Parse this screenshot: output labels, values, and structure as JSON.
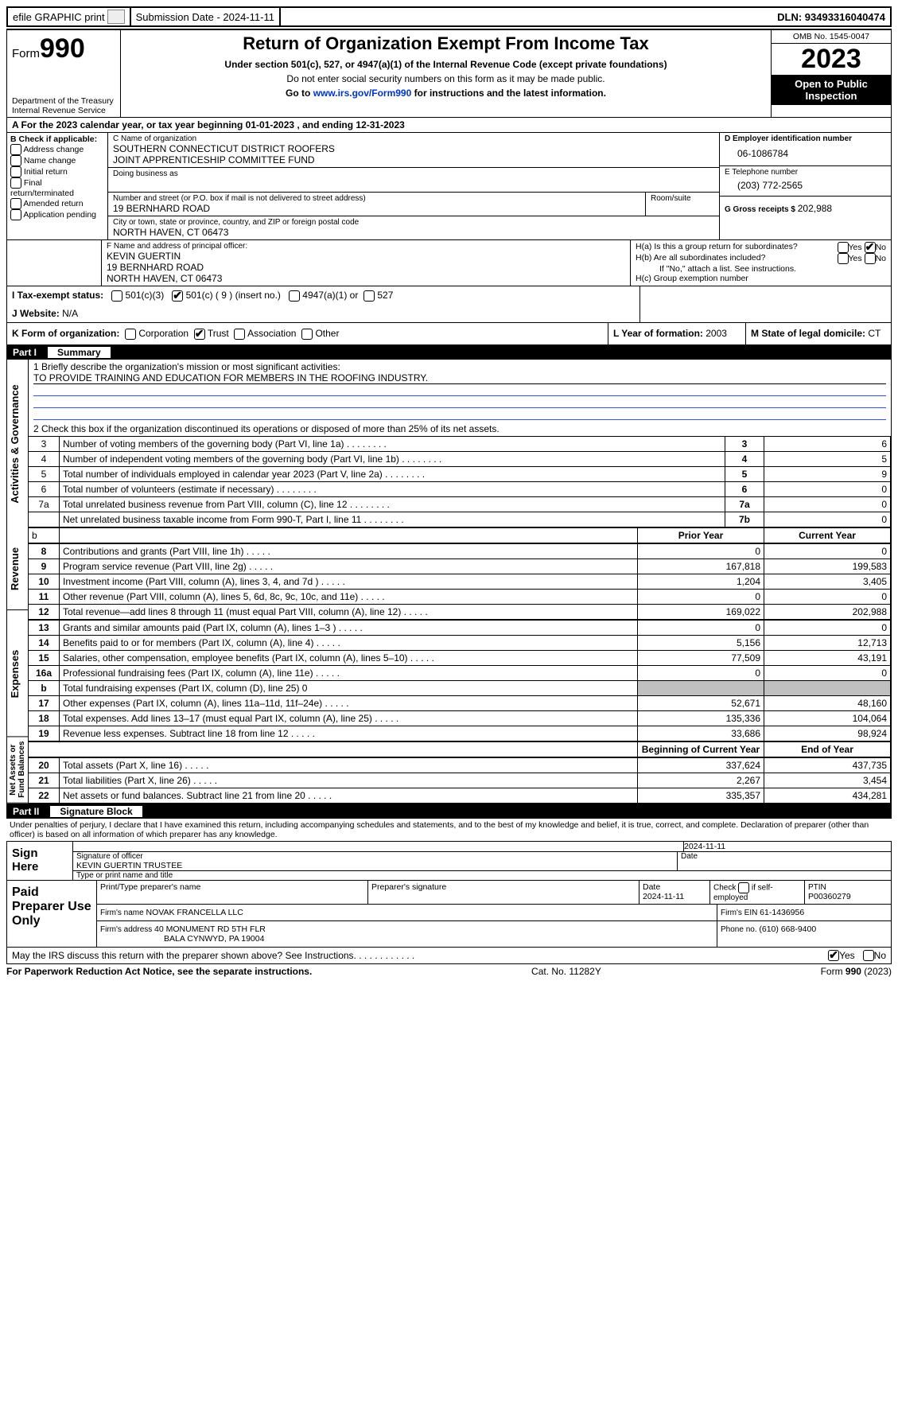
{
  "topbar": {
    "efile_label": "efile GRAPHIC print",
    "submission_label": "Submission Date - 2024-11-11",
    "dln_label": "DLN: 93493316040474"
  },
  "header": {
    "form_word": "Form",
    "form_num": "990",
    "dept": "Department of the Treasury\nInternal Revenue Service",
    "title": "Return of Organization Exempt From Income Tax",
    "sub1": "Under section 501(c), 527, or 4947(a)(1) of the Internal Revenue Code (except private foundations)",
    "sub2": "Do not enter social security numbers on this form as it may be made public.",
    "sub3_pre": "Go to ",
    "sub3_link": "www.irs.gov/Form990",
    "sub3_post": " for instructions and the latest information.",
    "omb": "OMB No. 1545-0047",
    "year": "2023",
    "open": "Open to Public Inspection"
  },
  "lineA": {
    "text_a": "A For the 2023 calendar year, or tax year beginning ",
    "begin": "01-01-2023",
    "mid": "    , and ending ",
    "end": "12-31-2023"
  },
  "boxB": {
    "head": "B Check if applicable:",
    "items": [
      "Address change",
      "Name change",
      "Initial return",
      "Final return/terminated",
      "Amended return",
      "Application pending"
    ]
  },
  "boxC": {
    "hdr_name": "C Name of organization",
    "name1": "SOUTHERN CONNECTICUT DISTRICT ROOFERS",
    "name2": "JOINT APPRENTICESHIP COMMITTEE FUND",
    "dba_hdr": "Doing business as",
    "street_hdr": "Number and street (or P.O. box if mail is not delivered to street address)",
    "room_hdr": "Room/suite",
    "street": "19 BERNHARD ROAD",
    "city_hdr": "City or town, state or province, country, and ZIP or foreign postal code",
    "city": "NORTH HAVEN, CT  06473"
  },
  "boxD": {
    "hdr": "D Employer identification number",
    "val": "06-1086784"
  },
  "boxE": {
    "hdr": "E Telephone number",
    "val": "(203) 772-2565"
  },
  "boxG": {
    "hdr": "G Gross receipts $ ",
    "val": "202,988"
  },
  "boxF": {
    "hdr": "F  Name and address of principal officer:",
    "l1": "KEVIN GUERTIN",
    "l2": "19 BERNHARD ROAD",
    "l3": "NORTH HAVEN, CT  06473"
  },
  "boxH": {
    "ha": "H(a)  Is this a group return for subordinates?",
    "hb": "H(b)  Are all subordinates included?",
    "hb2": "If \"No,\" attach a list. See instructions.",
    "hc": "H(c)  Group exemption number ",
    "yes": "Yes",
    "no": "No"
  },
  "boxI": {
    "hdr": "I    Tax-exempt status:",
    "o1": "501(c)(3)",
    "o2": "501(c) ( 9 ) (insert no.)",
    "o3": "4947(a)(1) or",
    "o4": "527"
  },
  "boxJ": {
    "hdr": "J    Website: ",
    "val": "N/A"
  },
  "boxK": {
    "hdr": "K Form of organization:",
    "o1": "Corporation",
    "o2": "Trust",
    "o3": "Association",
    "o4": "Other"
  },
  "boxL": {
    "hdr": "L Year of formation: ",
    "val": "2003"
  },
  "boxM": {
    "hdr": "M State of legal domicile: ",
    "val": "CT"
  },
  "part1": {
    "bar_part": "Part I",
    "bar_title": "Summary",
    "vlabels": {
      "gov": "Activities & Governance",
      "rev": "Revenue",
      "exp": "Expenses",
      "net": "Net Assets or Fund Balances"
    },
    "l1_hdr": "1   Briefly describe the organization's mission or most significant activities:",
    "l1_val": "TO PROVIDE TRAINING AND EDUCATION FOR MEMBERS IN THE ROOFING INDUSTRY.",
    "l2": "2   Check this box        if the organization discontinued its operations or disposed of more than 25% of its net assets.",
    "rows_gov": [
      {
        "n": "3",
        "label": "Number of voting members of the governing body (Part VI, line 1a)",
        "box": "3",
        "val": "6"
      },
      {
        "n": "4",
        "label": "Number of independent voting members of the governing body (Part VI, line 1b)",
        "box": "4",
        "val": "5"
      },
      {
        "n": "5",
        "label": "Total number of individuals employed in calendar year 2023 (Part V, line 2a)",
        "box": "5",
        "val": "9"
      },
      {
        "n": "6",
        "label": "Total number of volunteers (estimate if necessary)",
        "box": "6",
        "val": "0"
      },
      {
        "n": "7a",
        "label": "Total unrelated business revenue from Part VIII, column (C), line 12",
        "box": "7a",
        "val": "0"
      },
      {
        "n": "",
        "label": "Net unrelated business taxable income from Form 990-T, Part I, line 11",
        "box": "7b",
        "val": "0"
      }
    ],
    "hdr_b": "b",
    "col_prior": "Prior Year",
    "col_curr": "Current Year",
    "rows_rev": [
      {
        "n": "8",
        "label": "Contributions and grants (Part VIII, line 1h)",
        "py": "0",
        "cy": "0"
      },
      {
        "n": "9",
        "label": "Program service revenue (Part VIII, line 2g)",
        "py": "167,818",
        "cy": "199,583"
      },
      {
        "n": "10",
        "label": "Investment income (Part VIII, column (A), lines 3, 4, and 7d )",
        "py": "1,204",
        "cy": "3,405"
      },
      {
        "n": "11",
        "label": "Other revenue (Part VIII, column (A), lines 5, 6d, 8c, 9c, 10c, and 11e)",
        "py": "0",
        "cy": "0"
      },
      {
        "n": "12",
        "label": "Total revenue—add lines 8 through 11 (must equal Part VIII, column (A), line 12)",
        "py": "169,022",
        "cy": "202,988"
      }
    ],
    "rows_exp": [
      {
        "n": "13",
        "label": "Grants and similar amounts paid (Part IX, column (A), lines 1–3 )",
        "py": "0",
        "cy": "0"
      },
      {
        "n": "14",
        "label": "Benefits paid to or for members (Part IX, column (A), line 4)",
        "py": "5,156",
        "cy": "12,713"
      },
      {
        "n": "15",
        "label": "Salaries, other compensation, employee benefits (Part IX, column (A), lines 5–10)",
        "py": "77,509",
        "cy": "43,191"
      },
      {
        "n": "16a",
        "label": "Professional fundraising fees (Part IX, column (A), line 11e)",
        "py": "0",
        "cy": "0"
      },
      {
        "n": "b",
        "label": "Total fundraising expenses (Part IX, column (D), line 25) 0",
        "py": "",
        "cy": "",
        "grey": true
      },
      {
        "n": "17",
        "label": "Other expenses (Part IX, column (A), lines 11a–11d, 11f–24e)",
        "py": "52,671",
        "cy": "48,160"
      },
      {
        "n": "18",
        "label": "Total expenses. Add lines 13–17 (must equal Part IX, column (A), line 25)",
        "py": "135,336",
        "cy": "104,064"
      },
      {
        "n": "19",
        "label": "Revenue less expenses. Subtract line 18 from line 12",
        "py": "33,686",
        "cy": "98,924"
      }
    ],
    "col_begin": "Beginning of Current Year",
    "col_end": "End of Year",
    "rows_net": [
      {
        "n": "20",
        "label": "Total assets (Part X, line 16)",
        "py": "337,624",
        "cy": "437,735"
      },
      {
        "n": "21",
        "label": "Total liabilities (Part X, line 26)",
        "py": "2,267",
        "cy": "3,454"
      },
      {
        "n": "22",
        "label": "Net assets or fund balances. Subtract line 21 from line 20",
        "py": "335,357",
        "cy": "434,281"
      }
    ]
  },
  "part2": {
    "bar_part": "Part II",
    "bar_title": "Signature Block",
    "penalty": "Under penalties of perjury, I declare that I have examined this return, including accompanying schedules and statements, and to the best of my knowledge and belief, it is true, correct, and complete. Declaration of preparer (other than officer) is based on all information of which preparer has any knowledge.",
    "sign_here": "Sign Here",
    "sig_date": "2024-11-11",
    "sig_off_lbl": "Signature of officer",
    "sig_off_name": "KEVIN GUERTIN  TRUSTEE",
    "sig_type_lbl": "Type or print name and title",
    "date_lbl": "Date",
    "paid": "Paid Preparer Use Only",
    "prep_name_hdr": "Print/Type preparer's name",
    "prep_sig_hdr": "Preparer's signature",
    "prep_date_hdr": "Date",
    "prep_date": "2024-11-11",
    "prep_check": "Check         if self-employed",
    "ptin_hdr": "PTIN",
    "ptin": "P00360279",
    "firm_name_hdr": "Firm's name    ",
    "firm_name": "NOVAK FRANCELLA LLC",
    "firm_ein_hdr": "Firm's EIN  ",
    "firm_ein": "61-1436956",
    "firm_addr_hdr": "Firm's address ",
    "firm_addr1": "40 MONUMENT RD 5TH FLR",
    "firm_addr2": "BALA CYNWYD, PA  19004",
    "phone_hdr": "Phone no. ",
    "phone": "(610) 668-9400",
    "discuss": "May the IRS discuss this return with the preparer shown above? See Instructions.",
    "yes": "Yes",
    "no": "No"
  },
  "footer": {
    "left": "For Paperwork Reduction Act Notice, see the separate instructions.",
    "mid": "Cat. No. 11282Y",
    "right_a": "Form ",
    "right_b": "990",
    "right_c": " (2023)"
  }
}
